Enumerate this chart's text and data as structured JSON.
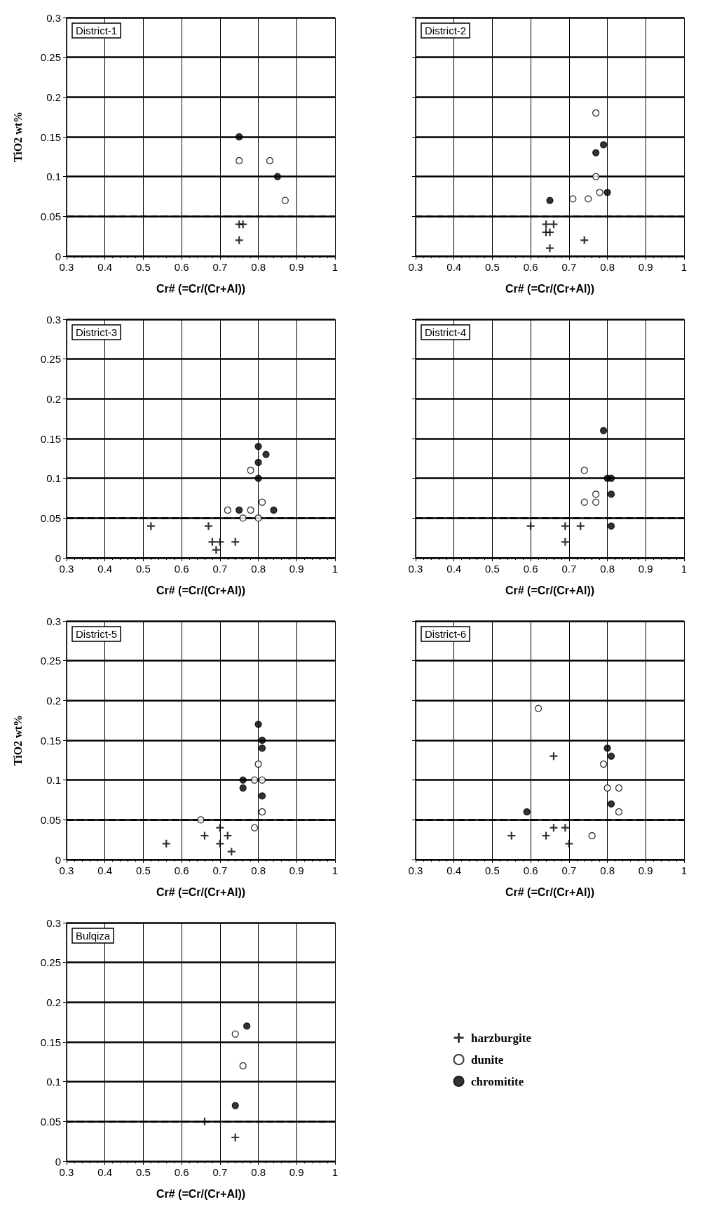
{
  "chart_data": [
    {
      "type": "scatter",
      "title": "District-1",
      "xlabel": "Cr# (=Cr/(Cr+Al))",
      "ylabel": "TiO2 wt%",
      "xlim": [
        0.3,
        1
      ],
      "xticks": [
        0.3,
        0.4,
        0.5,
        0.6,
        0.7,
        0.8,
        0.9,
        1
      ],
      "ylim": [
        0,
        0.3
      ],
      "yticks": [
        0,
        0.05,
        0.1,
        0.15,
        0.2,
        0.25,
        0.3
      ],
      "grid": true,
      "ref_lines": [
        {
          "axis": "y",
          "value": 0.05,
          "line_style": "dashed"
        }
      ],
      "series": [
        {
          "marker": "cross",
          "color": "#000000",
          "x": [
            0.75,
            0.76,
            0.75
          ],
          "values": [
            0.04,
            0.04,
            0.02
          ]
        },
        {
          "marker": "circle",
          "color": "#ffffff",
          "x": [
            0.83,
            0.75,
            0.87
          ],
          "values": [
            0.12,
            0.12,
            0.07
          ]
        },
        {
          "marker": "circle",
          "color": "#000000",
          "x": [
            0.75,
            0.85
          ],
          "values": [
            0.15,
            0.1
          ]
        }
      ]
    },
    {
      "type": "scatter",
      "title": "District-2",
      "xlabel": "Cr# (=Cr/(Cr+Al))",
      "xlim": [
        0.3,
        1
      ],
      "xticks": [
        0.3,
        0.4,
        0.5,
        0.6,
        0.7,
        0.8,
        0.9,
        1
      ],
      "ylim": [
        0,
        0.3
      ],
      "yticks": [
        0,
        0.05,
        0.1,
        0.15,
        0.2,
        0.25,
        0.3
      ],
      "tick_labels": "x",
      "grid": true,
      "ref_lines": [
        {
          "axis": "y",
          "value": 0.05,
          "line_style": "dashed"
        }
      ],
      "series": [
        {
          "marker": "cross",
          "color": "#000000",
          "x": [
            0.64,
            0.66,
            0.65,
            0.64,
            0.74,
            0.65
          ],
          "values": [
            0.04,
            0.04,
            0.03,
            0.03,
            0.02,
            0.01
          ]
        },
        {
          "marker": "circle",
          "color": "#ffffff",
          "x": [
            0.77,
            0.77,
            0.78,
            0.75,
            0.71
          ],
          "values": [
            0.18,
            0.1,
            0.08,
            0.072,
            0.072
          ]
        },
        {
          "marker": "circle",
          "color": "#000000",
          "x": [
            0.79,
            0.77,
            0.8,
            0.65
          ],
          "values": [
            0.14,
            0.13,
            0.08,
            0.07
          ]
        }
      ]
    },
    {
      "type": "scatter",
      "title": "District-3",
      "xlabel": "Cr# (=Cr/(Cr+Al))",
      "xlim": [
        0.3,
        1
      ],
      "xticks": [
        0.3,
        0.4,
        0.5,
        0.6,
        0.7,
        0.8,
        0.9,
        1
      ],
      "ylim": [
        0,
        0.3
      ],
      "yticks": [
        0,
        0.05,
        0.1,
        0.15,
        0.2,
        0.25,
        0.3
      ],
      "grid": true,
      "ref_lines": [
        {
          "axis": "y",
          "value": 0.05,
          "line_style": "dashed"
        }
      ],
      "series": [
        {
          "marker": "cross",
          "color": "#000000",
          "x": [
            0.67,
            0.52,
            0.74,
            0.7,
            0.68,
            0.69
          ],
          "values": [
            0.04,
            0.04,
            0.02,
            0.02,
            0.02,
            0.01
          ]
        },
        {
          "marker": "circle",
          "color": "#ffffff",
          "x": [
            0.78,
            0.81,
            0.78,
            0.8,
            0.76,
            0.72
          ],
          "values": [
            0.11,
            0.07,
            0.06,
            0.05,
            0.05,
            0.06
          ]
        },
        {
          "marker": "circle",
          "color": "#000000",
          "x": [
            0.8,
            0.82,
            0.8,
            0.8,
            0.84,
            0.75
          ],
          "values": [
            0.14,
            0.13,
            0.12,
            0.1,
            0.06,
            0.06
          ]
        }
      ]
    },
    {
      "type": "scatter",
      "title": "District-4",
      "xlabel": "Cr# (=Cr/(Cr+Al))",
      "xlim": [
        0.3,
        1
      ],
      "xticks": [
        0.3,
        0.4,
        0.5,
        0.6,
        0.7,
        0.8,
        0.9,
        1
      ],
      "ylim": [
        0,
        0.3
      ],
      "yticks": [
        0,
        0.05,
        0.1,
        0.15,
        0.2,
        0.25,
        0.3
      ],
      "tick_labels": "x",
      "grid": true,
      "ref_lines": [
        {
          "axis": "y",
          "value": 0.05,
          "line_style": "dashed"
        }
      ],
      "series": [
        {
          "marker": "cross",
          "color": "#000000",
          "x": [
            0.73,
            0.69,
            0.6,
            0.69
          ],
          "values": [
            0.04,
            0.04,
            0.04,
            0.02
          ]
        },
        {
          "marker": "circle",
          "color": "#ffffff",
          "x": [
            0.74,
            0.77,
            0.77,
            0.74
          ],
          "values": [
            0.11,
            0.08,
            0.07,
            0.07
          ]
        },
        {
          "marker": "circle",
          "color": "#000000",
          "x": [
            0.79,
            0.81,
            0.8,
            0.81,
            0.81
          ],
          "values": [
            0.16,
            0.1,
            0.1,
            0.08,
            0.04
          ]
        }
      ]
    },
    {
      "type": "scatter",
      "title": "District-5",
      "xlabel": "Cr# (=Cr/(Cr+Al))",
      "ylabel": "TiO2 wt%",
      "xlim": [
        0.3,
        1
      ],
      "xticks": [
        0.3,
        0.4,
        0.5,
        0.6,
        0.7,
        0.8,
        0.9,
        1
      ],
      "ylim": [
        0,
        0.3
      ],
      "yticks": [
        0,
        0.05,
        0.1,
        0.15,
        0.2,
        0.25,
        0.3
      ],
      "grid": true,
      "ref_lines": [
        {
          "axis": "y",
          "value": 0.05,
          "line_style": "dashed"
        }
      ],
      "series": [
        {
          "marker": "cross",
          "color": "#000000",
          "x": [
            0.7,
            0.72,
            0.66,
            0.7,
            0.73,
            0.56
          ],
          "values": [
            0.04,
            0.03,
            0.03,
            0.02,
            0.01,
            0.02
          ]
        },
        {
          "marker": "circle",
          "color": "#ffffff",
          "x": [
            0.8,
            0.81,
            0.79,
            0.81,
            0.65,
            0.79
          ],
          "values": [
            0.12,
            0.1,
            0.1,
            0.06,
            0.05,
            0.04
          ]
        },
        {
          "marker": "circle",
          "color": "#000000",
          "x": [
            0.8,
            0.81,
            0.81,
            0.81,
            0.76,
            0.76
          ],
          "values": [
            0.17,
            0.15,
            0.14,
            0.08,
            0.1,
            0.09
          ]
        }
      ]
    },
    {
      "type": "scatter",
      "title": "District-6",
      "xlabel": "Cr# (=Cr/(Cr+Al))",
      "xlim": [
        0.3,
        1
      ],
      "xticks": [
        0.3,
        0.4,
        0.5,
        0.6,
        0.7,
        0.8,
        0.9,
        1
      ],
      "ylim": [
        0,
        0.3
      ],
      "yticks": [
        0,
        0.05,
        0.1,
        0.15,
        0.2,
        0.25,
        0.3
      ],
      "tick_labels": "x",
      "grid": true,
      "ref_lines": [
        {
          "axis": "y",
          "value": 0.05,
          "line_style": "dashed"
        }
      ],
      "series": [
        {
          "marker": "cross",
          "color": "#000000",
          "x": [
            0.66,
            0.69,
            0.66,
            0.64,
            0.7,
            0.55
          ],
          "values": [
            0.13,
            0.04,
            0.04,
            0.03,
            0.02,
            0.03
          ]
        },
        {
          "marker": "circle",
          "color": "#ffffff",
          "x": [
            0.79,
            0.83,
            0.8,
            0.83,
            0.62,
            0.76
          ],
          "values": [
            0.12,
            0.09,
            0.09,
            0.06,
            0.19,
            0.03
          ]
        },
        {
          "marker": "circle",
          "color": "#000000",
          "x": [
            0.8,
            0.81,
            0.81,
            0.59
          ],
          "values": [
            0.14,
            0.13,
            0.07,
            0.06
          ]
        }
      ]
    },
    {
      "type": "scatter",
      "title": "Bulqiza",
      "xlabel": "Cr# (=Cr/(Cr+Al))",
      "xlim": [
        0.3,
        1
      ],
      "xticks": [
        0.3,
        0.4,
        0.5,
        0.6,
        0.7,
        0.8,
        0.9,
        1
      ],
      "ylim": [
        0,
        0.3
      ],
      "yticks": [
        0,
        0.05,
        0.1,
        0.15,
        0.2,
        0.25,
        0.3
      ],
      "grid": true,
      "legend": "right",
      "ref_lines": [
        {
          "axis": "y",
          "value": 0.05,
          "line_style": "dashed"
        }
      ],
      "series": [
        {
          "name": "harzburgite",
          "marker": "cross",
          "color": "#000000",
          "x": [
            0.66,
            0.74
          ],
          "values": [
            0.05,
            0.03
          ]
        },
        {
          "name": "dunite",
          "marker": "circle",
          "color": "#ffffff",
          "x": [
            0.74,
            0.76
          ],
          "values": [
            0.16,
            0.12
          ]
        },
        {
          "name": "chromitite",
          "marker": "circle",
          "color": "#000000",
          "x": [
            0.77,
            0.74
          ],
          "values": [
            0.17,
            0.07
          ]
        }
      ]
    }
  ]
}
